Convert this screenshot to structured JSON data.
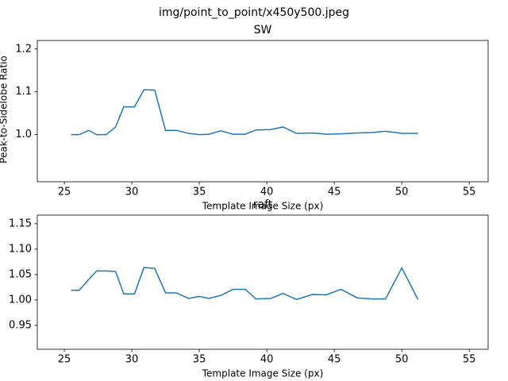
{
  "figure_title": "img/point_to_point/x450y500.jpeg",
  "chart_data": [
    {
      "type": "line",
      "title": "SW",
      "xlabel": "Template Image Size (px)",
      "ylabel": "Peak-to-Sidelobe Ratio",
      "x": [
        25.5,
        26.1,
        26.8,
        27.4,
        28.1,
        28.8,
        29.4,
        30.2,
        30.9,
        31.7,
        32.5,
        33.3,
        34.2,
        35.0,
        35.7,
        36.6,
        37.5,
        38.4,
        39.2,
        40.3,
        41.2,
        42.2,
        43.4,
        44.4,
        45.5,
        46.7,
        47.8,
        48.8,
        50.0,
        51.2
      ],
      "series": [
        {
          "color": "#1f77b4",
          "values": [
            1.0,
            1.0,
            1.01,
            1.0,
            1.0,
            1.018,
            1.065,
            1.065,
            1.105,
            1.104,
            1.01,
            1.01,
            1.003,
            1.0,
            1.001,
            1.009,
            1.001,
            1.001,
            1.011,
            1.012,
            1.018,
            1.003,
            1.004,
            1.001,
            1.002,
            1.004,
            1.005,
            1.008,
            1.003,
            1.003
          ]
        }
      ],
      "xlim": [
        23.0,
        56.4
      ],
      "xticks": [
        25,
        30,
        35,
        40,
        45,
        50,
        55
      ],
      "ylim": [
        0.89,
        1.22
      ],
      "yticks": [
        {
          "value": 1,
          "label": "1.0"
        },
        1.1,
        1.2
      ]
    },
    {
      "type": "line",
      "title": "raft",
      "xlabel": "Template Image Size (px)",
      "x": [
        25.5,
        26.1,
        26.8,
        27.4,
        28.1,
        28.8,
        29.4,
        30.2,
        30.9,
        31.7,
        32.5,
        33.3,
        34.2,
        35.0,
        35.7,
        36.6,
        37.5,
        38.4,
        39.2,
        40.3,
        41.2,
        42.2,
        43.4,
        44.4,
        45.5,
        46.7,
        47.8,
        48.8,
        50.0,
        51.2
      ],
      "series": [
        {
          "color": "#1f77b4",
          "values": [
            1.019,
            1.019,
            1.04,
            1.057,
            1.057,
            1.056,
            1.012,
            1.012,
            1.064,
            1.062,
            1.014,
            1.014,
            1.003,
            1.007,
            1.003,
            1.009,
            1.021,
            1.021,
            1.002,
            1.003,
            1.013,
            1.001,
            1.011,
            1.01,
            1.021,
            1.004,
            1.002,
            1.002,
            1.063,
            1.001
          ]
        }
      ],
      "xlim": [
        23.0,
        56.4
      ],
      "xticks": [
        25,
        30,
        35,
        40,
        45,
        50,
        55
      ],
      "ylim": [
        0.903,
        1.167
      ],
      "yticks": [
        0.95,
        {
          "value": 1,
          "label": "1.00"
        },
        1.05,
        {
          "value": 1.1,
          "label": "1.10"
        },
        1.15
      ]
    }
  ]
}
